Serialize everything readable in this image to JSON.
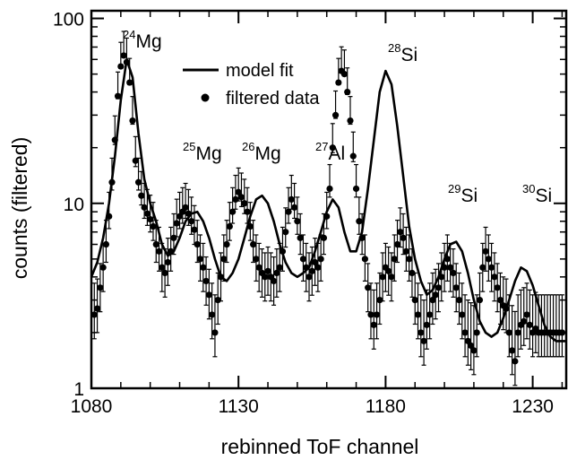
{
  "chart_data": {
    "type": "scatter",
    "xlabel": "rebinned ToF channel",
    "ylabel": "counts (filtered)",
    "xlim": [
      1080,
      1242
    ],
    "ylim": [
      1,
      110
    ],
    "yscale": "log",
    "grid": false,
    "x_ticks": [
      1080,
      1130,
      1180,
      1230
    ],
    "y_ticks": [
      1,
      10,
      100
    ],
    "x_tick_labels": [
      "1080",
      "1130",
      "1180",
      "1230"
    ],
    "y_tick_labels": [
      "1",
      "10",
      "100"
    ],
    "legend": {
      "position": "top-center",
      "entries": [
        {
          "label": "model fit",
          "marker": "line"
        },
        {
          "label": "filtered data",
          "marker": "dot"
        }
      ]
    },
    "peaks": [
      {
        "mass": "24",
        "element": "Mg",
        "x": 1092,
        "y": 62
      },
      {
        "mass": "25",
        "element": "Mg",
        "x": 1117,
        "y": 9.2
      },
      {
        "mass": "26",
        "element": "Mg",
        "x": 1139,
        "y": 11
      },
      {
        "mass": "27",
        "element": "Al",
        "x": 1162,
        "y": 10.5
      },
      {
        "mass": "28",
        "element": "Si",
        "x": 1181,
        "y": 52
      },
      {
        "mass": "29",
        "element": "Si",
        "x": 1205,
        "y": 6.2
      },
      {
        "mass": "30",
        "element": "Si",
        "x": 1226,
        "y": 4.5
      }
    ],
    "series": [
      {
        "name": "filtered data",
        "kind": "points",
        "x": [
          1081,
          1082,
          1083,
          1084,
          1085,
          1086,
          1087,
          1088,
          1089,
          1090,
          1091,
          1092,
          1093,
          1094,
          1095,
          1096,
          1097,
          1098,
          1099,
          1100,
          1101,
          1102,
          1103,
          1104,
          1105,
          1106,
          1107,
          1108,
          1109,
          1110,
          1111,
          1112,
          1113,
          1114,
          1115,
          1116,
          1117,
          1118,
          1119,
          1120,
          1121,
          1122,
          1123,
          1124,
          1125,
          1126,
          1127,
          1128,
          1129,
          1130,
          1131,
          1132,
          1133,
          1134,
          1135,
          1136,
          1137,
          1138,
          1139,
          1140,
          1141,
          1142,
          1143,
          1144,
          1145,
          1146,
          1147,
          1148,
          1149,
          1150,
          1151,
          1152,
          1153,
          1154,
          1155,
          1156,
          1157,
          1158,
          1159,
          1160,
          1161,
          1162,
          1163,
          1164,
          1165,
          1166,
          1167,
          1168,
          1169,
          1170,
          1171,
          1172,
          1173,
          1174,
          1175,
          1176,
          1177,
          1178,
          1179,
          1180,
          1181,
          1182,
          1183,
          1184,
          1185,
          1186,
          1187,
          1188,
          1189,
          1190,
          1191,
          1192,
          1193,
          1194,
          1195,
          1196,
          1197,
          1198,
          1199,
          1200,
          1201,
          1202,
          1203,
          1204,
          1205,
          1206,
          1207,
          1208,
          1209,
          1210,
          1211,
          1212,
          1213,
          1214,
          1215,
          1216,
          1217,
          1218,
          1219,
          1220,
          1221,
          1222,
          1223,
          1224,
          1225,
          1226,
          1227,
          1228,
          1229,
          1230,
          1231,
          1232,
          1233,
          1234,
          1235,
          1236,
          1237,
          1238,
          1239,
          1240,
          1241
        ],
        "y": [
          2.5,
          2.7,
          3.5,
          4.5,
          6.0,
          8.5,
          13,
          22,
          38,
          55,
          63,
          58,
          45,
          28,
          17,
          13,
          11,
          9.5,
          8.8,
          8.2,
          7.5,
          6.0,
          5.5,
          4.5,
          4.2,
          4.8,
          5.5,
          6.5,
          7.8,
          8.5,
          9.0,
          9.5,
          8.8,
          8.0,
          7.2,
          6.0,
          5.0,
          4.5,
          3.8,
          3.2,
          2.5,
          2.0,
          3.0,
          4.0,
          5.0,
          6.0,
          7.5,
          9.0,
          10.5,
          11.5,
          10.8,
          10.0,
          9.0,
          7.5,
          6.0,
          5.0,
          4.5,
          4.2,
          4.0,
          4.3,
          4.0,
          3.8,
          4.2,
          4.5,
          5.5,
          7.0,
          9.0,
          10.5,
          9.5,
          8.0,
          6.5,
          5.0,
          4.5,
          4.0,
          4.3,
          4.8,
          4.5,
          5.0,
          6.5,
          8.5,
          12,
          20,
          30,
          45,
          52,
          50,
          40,
          28,
          18,
          12,
          8.0,
          6.5,
          5.0,
          3.5,
          2.5,
          2.2,
          2.5,
          3.0,
          4.0,
          4.5,
          4.3,
          4.0,
          5.0,
          6.0,
          7.0,
          6.5,
          5.5,
          5.0,
          4.2,
          3.0,
          2.5,
          2.0,
          1.8,
          2.2,
          2.5,
          3.0,
          3.2,
          3.5,
          4.0,
          4.5,
          5.0,
          4.5,
          4.2,
          3.5,
          3.0,
          2.5,
          2.0,
          1.8,
          1.7,
          1.6,
          2.0,
          3.0,
          4.5,
          5.5,
          5.0,
          4.5,
          4.0,
          3.5,
          3.0,
          2.8,
          2.7,
          2.0,
          1.6,
          1.4,
          2.0,
          2.2,
          2.3,
          2.5,
          2.2,
          2.0,
          2.1,
          2.0,
          2.0,
          2.0,
          2.0,
          2.0,
          2.0,
          2.0,
          2.0,
          2.0,
          2.0
        ],
        "yerr_factor": 1.35
      },
      {
        "name": "model fit",
        "kind": "line",
        "x": [
          1080,
          1082,
          1084,
          1086,
          1088,
          1090,
          1092,
          1094,
          1096,
          1098,
          1100,
          1102,
          1104,
          1106,
          1108,
          1110,
          1112,
          1114,
          1116,
          1118,
          1120,
          1122,
          1124,
          1126,
          1128,
          1130,
          1132,
          1134,
          1136,
          1138,
          1140,
          1142,
          1144,
          1146,
          1148,
          1150,
          1152,
          1154,
          1156,
          1158,
          1160,
          1162,
          1164,
          1166,
          1168,
          1170,
          1172,
          1174,
          1176,
          1178,
          1180,
          1182,
          1184,
          1186,
          1188,
          1190,
          1192,
          1194,
          1196,
          1198,
          1200,
          1202,
          1204,
          1206,
          1208,
          1210,
          1212,
          1214,
          1216,
          1218,
          1220,
          1222,
          1224,
          1226,
          1228,
          1230,
          1232,
          1234,
          1236,
          1238,
          1240,
          1242
        ],
        "y": [
          4.0,
          4.8,
          6.5,
          10,
          18,
          36,
          60,
          48,
          24,
          13.5,
          10,
          8.0,
          6.0,
          5.2,
          5.5,
          6.5,
          8.0,
          8.8,
          9.0,
          8.0,
          6.5,
          5.0,
          4.0,
          3.8,
          4.2,
          5.0,
          6.5,
          8.5,
          10.5,
          11,
          10,
          8.0,
          6.0,
          4.8,
          4.2,
          4.0,
          4.2,
          4.5,
          5.5,
          7.0,
          9.0,
          10.5,
          9.5,
          7.0,
          5.5,
          5.5,
          7.0,
          12,
          22,
          40,
          52,
          44,
          26,
          14,
          7.5,
          5.0,
          3.8,
          3.2,
          3.4,
          4.0,
          5.0,
          6.0,
          6.2,
          5.5,
          4.2,
          3.0,
          2.3,
          2.0,
          1.9,
          2.0,
          2.4,
          3.0,
          3.8,
          4.5,
          4.3,
          3.6,
          2.8,
          2.2,
          1.9,
          1.8,
          1.8,
          1.8
        ]
      }
    ]
  }
}
